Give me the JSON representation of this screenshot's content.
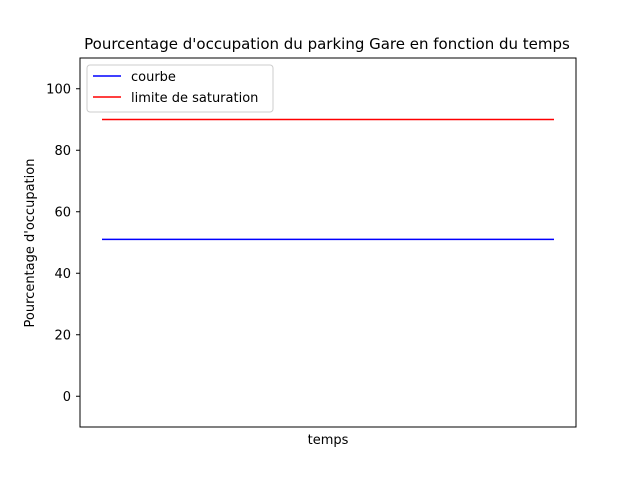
{
  "chart_data": {
    "type": "line",
    "title": "Pourcentage d'occupation du parking Gare en fonction du temps",
    "xlabel": "temps",
    "ylabel": "Pourcentage d'occupation",
    "ylim": [
      -10,
      110
    ],
    "yticks": [
      0,
      20,
      40,
      60,
      80,
      100
    ],
    "x": [
      0,
      1
    ],
    "grid": false,
    "legend_position": "upper-left",
    "series": [
      {
        "name": "courbe",
        "color": "#0000ff",
        "values": [
          51,
          51
        ]
      },
      {
        "name": "limite de saturation",
        "color": "#ff0000",
        "values": [
          90,
          90
        ]
      }
    ]
  }
}
